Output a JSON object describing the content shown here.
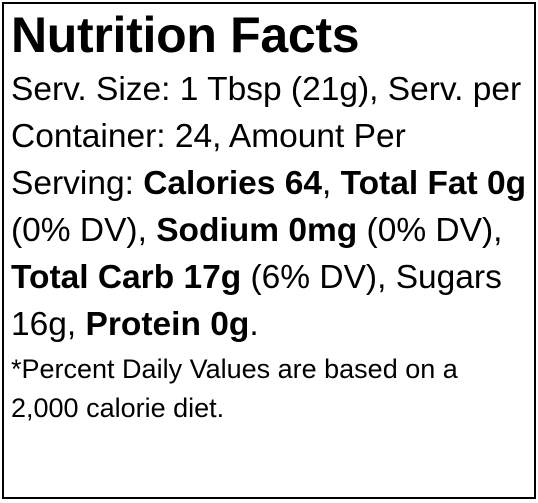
{
  "label": {
    "title": "Nutrition Facts",
    "segments": [
      {
        "text": "Serv. Size: 1 Tbsp (21g), Serv. per Container: 24, Amount Per Serving: ",
        "bold": false
      },
      {
        "text": "Calories 64",
        "bold": true
      },
      {
        "text": ", ",
        "bold": false
      },
      {
        "text": "Total Fat 0g",
        "bold": true
      },
      {
        "text": " (0% DV), ",
        "bold": false
      },
      {
        "text": "Sodium 0mg",
        "bold": true
      },
      {
        "text": " (0% DV), ",
        "bold": false
      },
      {
        "text": "Total Carb 17g",
        "bold": true
      },
      {
        "text": " (6% DV), Sugars 16g, ",
        "bold": false
      },
      {
        "text": "Protein 0g",
        "bold": true
      },
      {
        "text": ".",
        "bold": false
      }
    ],
    "footnote": "*Percent Daily Values are based on a 2,000 calorie diet."
  }
}
